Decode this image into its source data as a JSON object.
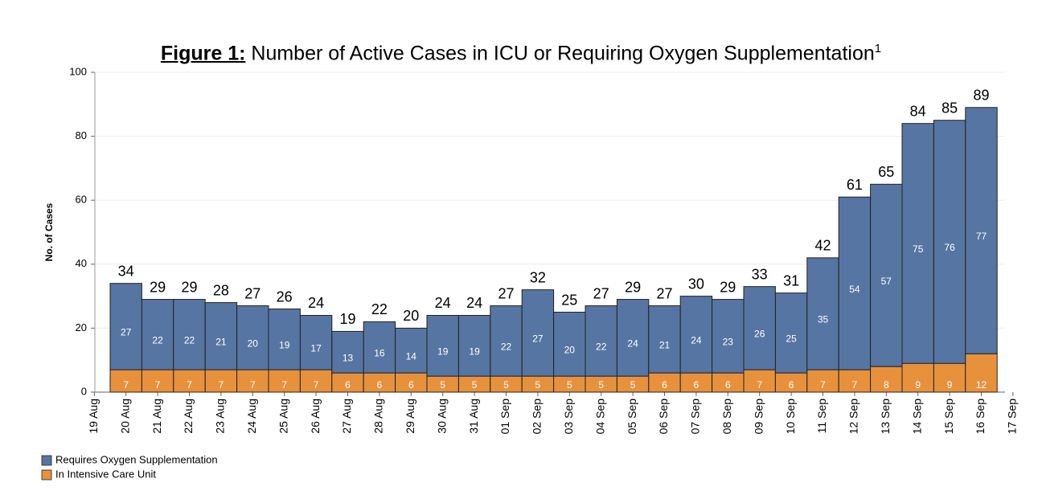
{
  "chart_data": {
    "type": "stacked_bar",
    "title_label": "Figure 1:",
    "title": "Number of Active Cases in ICU or Requiring Oxygen Supplementation",
    "title_footnote": "1",
    "y_label": "No. of Cases",
    "categories": [
      "19 Aug",
      "20 Aug",
      "21 Aug",
      "22 Aug",
      "23 Aug",
      "24 Aug",
      "25 Aug",
      "26 Aug",
      "27 Aug",
      "28 Aug",
      "29 Aug",
      "30 Aug",
      "31 Aug",
      "01 Sep",
      "02 Sep",
      "03 Sep",
      "04 Sep",
      "05 Sep",
      "06 Sep",
      "07 Sep",
      "08 Sep",
      "09 Sep",
      "10 Sep",
      "11 Sep",
      "12 Sep",
      "13 Sep",
      "14 Sep",
      "15 Sep",
      "16 Sep",
      "17 Sep"
    ],
    "series": [
      {
        "name": "Requires Oxygen Supplementation",
        "color": "#5675a3",
        "values": [
          null,
          27,
          22,
          22,
          21,
          20,
          19,
          17,
          13,
          16,
          14,
          19,
          19,
          22,
          27,
          20,
          22,
          24,
          21,
          24,
          23,
          26,
          25,
          35,
          54,
          57,
          75,
          76,
          77,
          null
        ]
      },
      {
        "name": "In Intensive Care Unit",
        "color": "#e8913c",
        "values": [
          null,
          7,
          7,
          7,
          7,
          7,
          7,
          7,
          6,
          6,
          6,
          5,
          5,
          5,
          5,
          5,
          5,
          5,
          6,
          6,
          6,
          7,
          6,
          7,
          7,
          8,
          9,
          9,
          12,
          null
        ]
      }
    ],
    "totals": [
      null,
      34,
      29,
      29,
      28,
      27,
      26,
      24,
      19,
      22,
      20,
      24,
      24,
      27,
      32,
      25,
      27,
      29,
      27,
      30,
      29,
      33,
      31,
      42,
      61,
      65,
      84,
      85,
      89,
      null
    ],
    "ylim": [
      0,
      100
    ],
    "yticks": [
      0,
      20,
      40,
      60,
      80,
      100
    ],
    "grid": true
  }
}
